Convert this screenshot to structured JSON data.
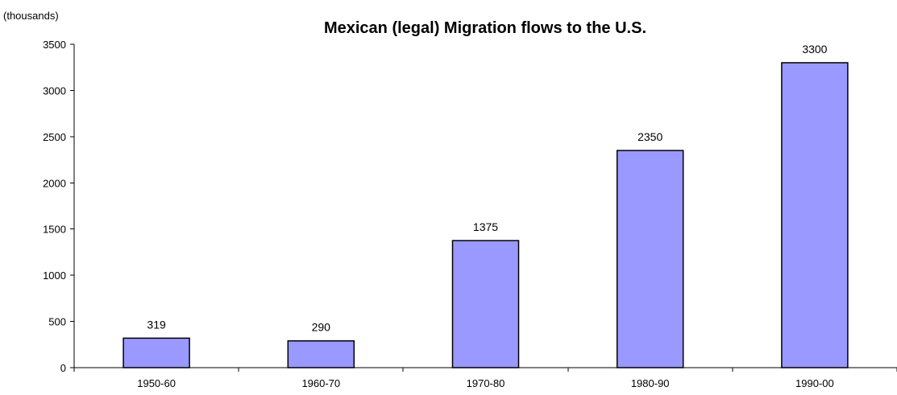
{
  "chart_data": {
    "type": "bar",
    "title": "Mexican (legal) Migration flows to the U.S.",
    "ylabel": "(thousands)",
    "xlabel": "",
    "categories": [
      "1950-60",
      "1960-70",
      "1970-80",
      "1980-90",
      "1990-00"
    ],
    "values": [
      319,
      290,
      1375,
      2350,
      3300
    ],
    "data_labels": [
      "319",
      "290",
      "1375",
      "2350",
      "3300"
    ],
    "ylim": [
      0,
      3500
    ],
    "yticks": [
      0,
      500,
      1000,
      1500,
      2000,
      2500,
      3000,
      3500
    ],
    "ytick_labels": [
      "0",
      "500",
      "1000",
      "1500",
      "2000",
      "2500",
      "3000",
      "3500"
    ],
    "grid": false,
    "legend": "none",
    "bar_color": "#9999ff",
    "bar_edge_color": "#000000"
  }
}
